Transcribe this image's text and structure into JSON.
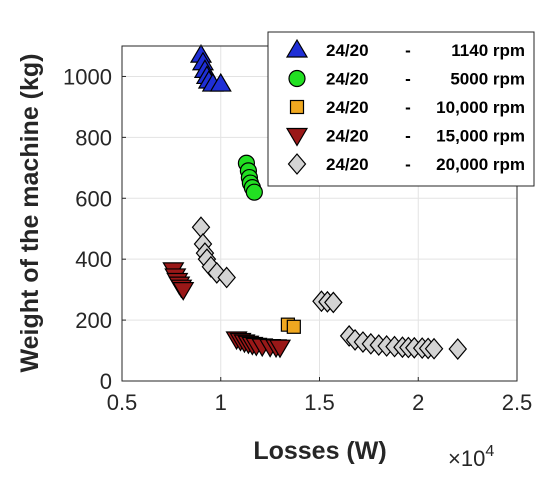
{
  "chart_data": {
    "type": "scatter",
    "xlabel": "Losses (W)",
    "ylabel": "Weight of the machine (kg)",
    "x_multiplier_label": "×10",
    "x_multiplier_exponent": "4",
    "xlim": [
      0.5,
      2.5
    ],
    "ylim": [
      0,
      1100
    ],
    "x_ticks": [
      0.5,
      1,
      1.5,
      2,
      2.5
    ],
    "x_tick_labels": [
      "0.5",
      "1",
      "1.5",
      "2",
      "2.5"
    ],
    "y_ticks": [
      0,
      200,
      400,
      600,
      800,
      1000
    ],
    "y_tick_labels": [
      "0",
      "200",
      "400",
      "600",
      "800",
      "1000"
    ],
    "grid": true,
    "legend_position": "top-right",
    "series": [
      {
        "name_parts": [
          "24/20",
          "-",
          "1140 rpm"
        ],
        "marker": "triangle-up",
        "color": "#1f2fd6",
        "points": [
          [
            0.9,
            1070
          ],
          [
            0.91,
            1045
          ],
          [
            0.92,
            1020
          ],
          [
            0.93,
            1000
          ],
          [
            0.94,
            985
          ],
          [
            0.96,
            975
          ],
          [
            1.0,
            975
          ]
        ]
      },
      {
        "name_parts": [
          "24/20",
          "-",
          "5000 rpm"
        ],
        "marker": "circle",
        "color": "#22e022",
        "points": [
          [
            1.13,
            715
          ],
          [
            1.14,
            690
          ],
          [
            1.145,
            668
          ],
          [
            1.15,
            650
          ],
          [
            1.16,
            635
          ],
          [
            1.17,
            620
          ]
        ]
      },
      {
        "name_parts": [
          "24/20",
          "-",
          "10,000 rpm"
        ],
        "marker": "square",
        "color": "#f0a820",
        "points": [
          [
            1.34,
            185
          ],
          [
            1.37,
            178
          ]
        ]
      },
      {
        "name_parts": [
          "24/20",
          "-",
          "15,000 rpm"
        ],
        "marker": "triangle-down",
        "color": "#9a1818",
        "points": [
          [
            0.76,
            365
          ],
          [
            0.77,
            345
          ],
          [
            0.78,
            330
          ],
          [
            0.79,
            318
          ],
          [
            0.8,
            308
          ],
          [
            0.81,
            300
          ],
          [
            1.08,
            138
          ],
          [
            1.1,
            133
          ],
          [
            1.12,
            128
          ],
          [
            1.14,
            124
          ],
          [
            1.16,
            120
          ],
          [
            1.18,
            117
          ],
          [
            1.21,
            115
          ],
          [
            1.25,
            113
          ],
          [
            1.28,
            112
          ],
          [
            1.3,
            111
          ]
        ]
      },
      {
        "name_parts": [
          "24/20",
          "-",
          "20,000 rpm"
        ],
        "marker": "diamond",
        "color": "#d4d4d4",
        "points": [
          [
            0.9,
            505
          ],
          [
            0.91,
            450
          ],
          [
            0.92,
            420
          ],
          [
            0.93,
            400
          ],
          [
            0.95,
            375
          ],
          [
            0.98,
            355
          ],
          [
            1.03,
            340
          ],
          [
            1.51,
            262
          ],
          [
            1.54,
            260
          ],
          [
            1.57,
            258
          ],
          [
            1.65,
            148
          ],
          [
            1.68,
            135
          ],
          [
            1.72,
            128
          ],
          [
            1.76,
            122
          ],
          [
            1.8,
            118
          ],
          [
            1.84,
            115
          ],
          [
            1.88,
            113
          ],
          [
            1.92,
            111
          ],
          [
            1.95,
            110
          ],
          [
            1.98,
            109
          ],
          [
            2.02,
            108
          ],
          [
            2.05,
            107
          ],
          [
            2.08,
            106
          ],
          [
            2.2,
            105
          ]
        ]
      }
    ]
  }
}
